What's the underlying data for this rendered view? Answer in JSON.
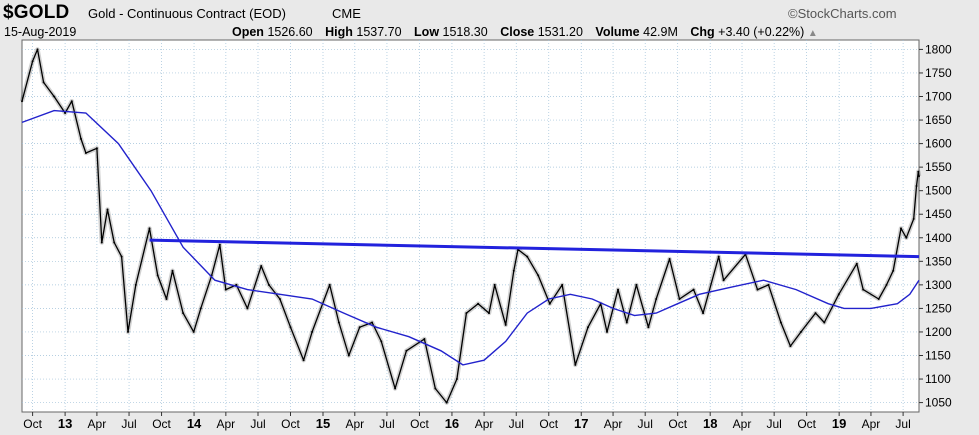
{
  "header": {
    "symbol": "$GOLD",
    "description": "Gold - Continuous Contract (EOD)",
    "exchange": "CME",
    "brand": "©StockCharts.com",
    "date": "15-Aug-2019",
    "open_label": "Open",
    "open_value": "1526.60",
    "high_label": "High",
    "high_value": "1537.70",
    "low_label": "Low",
    "low_value": "1518.30",
    "close_label": "Close",
    "close_value": "1531.20",
    "volume_label": "Volume",
    "volume_value": "42.9M",
    "chg_label": "Chg",
    "chg_value": "+3.40 (+0.22%)",
    "chg_arrow": "▲"
  },
  "colors": {
    "price": "#000000",
    "moving_average": "#2222cc",
    "trendline": "#2222dd",
    "grid": "#9fc0d8",
    "plot_background": "#ffffff",
    "frame": "#e9e9e9"
  },
  "chart_data": {
    "type": "line",
    "title": "Gold - Continuous Contract (EOD)",
    "y_axis_side": "right",
    "ylim": [
      1030,
      1820
    ],
    "yticks": [
      1050,
      1100,
      1150,
      1200,
      1250,
      1300,
      1350,
      1400,
      1450,
      1500,
      1550,
      1600,
      1650,
      1700,
      1750,
      1800
    ],
    "xlim": [
      "2012-09-01",
      "2019-08-15"
    ],
    "xticks": [
      {
        "label": "Oct",
        "date": "2012-10-01",
        "bold": false
      },
      {
        "label": "13",
        "date": "2013-01-01",
        "bold": true
      },
      {
        "label": "Apr",
        "date": "2013-04-01",
        "bold": false
      },
      {
        "label": "Jul",
        "date": "2013-07-01",
        "bold": false
      },
      {
        "label": "Oct",
        "date": "2013-10-01",
        "bold": false
      },
      {
        "label": "14",
        "date": "2014-01-01",
        "bold": true
      },
      {
        "label": "Apr",
        "date": "2014-04-01",
        "bold": false
      },
      {
        "label": "Jul",
        "date": "2014-07-01",
        "bold": false
      },
      {
        "label": "Oct",
        "date": "2014-10-01",
        "bold": false
      },
      {
        "label": "15",
        "date": "2015-01-01",
        "bold": true
      },
      {
        "label": "Apr",
        "date": "2015-04-01",
        "bold": false
      },
      {
        "label": "Jul",
        "date": "2015-07-01",
        "bold": false
      },
      {
        "label": "Oct",
        "date": "2015-10-01",
        "bold": false
      },
      {
        "label": "16",
        "date": "2016-01-01",
        "bold": true
      },
      {
        "label": "Apr",
        "date": "2016-04-01",
        "bold": false
      },
      {
        "label": "Jul",
        "date": "2016-07-01",
        "bold": false
      },
      {
        "label": "Oct",
        "date": "2016-10-01",
        "bold": false
      },
      {
        "label": "17",
        "date": "2017-01-01",
        "bold": true
      },
      {
        "label": "Apr",
        "date": "2017-04-01",
        "bold": false
      },
      {
        "label": "Jul",
        "date": "2017-07-01",
        "bold": false
      },
      {
        "label": "Oct",
        "date": "2017-10-01",
        "bold": false
      },
      {
        "label": "18",
        "date": "2018-01-01",
        "bold": true
      },
      {
        "label": "Apr",
        "date": "2018-04-01",
        "bold": false
      },
      {
        "label": "Jul",
        "date": "2018-07-01",
        "bold": false
      },
      {
        "label": "Oct",
        "date": "2018-10-01",
        "bold": false
      },
      {
        "label": "19",
        "date": "2019-01-01",
        "bold": true
      },
      {
        "label": "Apr",
        "date": "2019-04-01",
        "bold": false
      },
      {
        "label": "Jul",
        "date": "2019-07-01",
        "bold": false
      }
    ],
    "grid": true,
    "series": [
      {
        "style": "price",
        "points": [
          [
            "2012-09-01",
            1690
          ],
          [
            "2012-10-01",
            1775
          ],
          [
            "2012-10-15",
            1800
          ],
          [
            "2012-11-01",
            1730
          ],
          [
            "2012-12-01",
            1700
          ],
          [
            "2013-01-01",
            1665
          ],
          [
            "2013-01-20",
            1690
          ],
          [
            "2013-02-15",
            1610
          ],
          [
            "2013-03-01",
            1580
          ],
          [
            "2013-04-01",
            1590
          ],
          [
            "2013-04-15",
            1390
          ],
          [
            "2013-05-01",
            1460
          ],
          [
            "2013-05-20",
            1390
          ],
          [
            "2013-06-10",
            1360
          ],
          [
            "2013-06-28",
            1200
          ],
          [
            "2013-07-20",
            1300
          ],
          [
            "2013-08-28",
            1420
          ],
          [
            "2013-09-20",
            1320
          ],
          [
            "2013-10-15",
            1270
          ],
          [
            "2013-11-01",
            1330
          ],
          [
            "2013-12-01",
            1240
          ],
          [
            "2013-12-31",
            1200
          ],
          [
            "2014-01-20",
            1250
          ],
          [
            "2014-02-20",
            1320
          ],
          [
            "2014-03-15",
            1385
          ],
          [
            "2014-04-01",
            1290
          ],
          [
            "2014-05-01",
            1300
          ],
          [
            "2014-06-01",
            1250
          ],
          [
            "2014-07-10",
            1340
          ],
          [
            "2014-08-01",
            1300
          ],
          [
            "2014-09-01",
            1270
          ],
          [
            "2014-10-01",
            1210
          ],
          [
            "2014-11-07",
            1140
          ],
          [
            "2014-12-01",
            1200
          ],
          [
            "2015-01-20",
            1300
          ],
          [
            "2015-02-15",
            1220
          ],
          [
            "2015-03-15",
            1150
          ],
          [
            "2015-04-15",
            1210
          ],
          [
            "2015-05-20",
            1220
          ],
          [
            "2015-06-15",
            1180
          ],
          [
            "2015-07-24",
            1080
          ],
          [
            "2015-08-25",
            1160
          ],
          [
            "2015-10-15",
            1185
          ],
          [
            "2015-11-15",
            1080
          ],
          [
            "2015-12-17",
            1050
          ],
          [
            "2016-01-15",
            1100
          ],
          [
            "2016-02-11",
            1240
          ],
          [
            "2016-03-15",
            1260
          ],
          [
            "2016-04-15",
            1240
          ],
          [
            "2016-05-01",
            1300
          ],
          [
            "2016-06-01",
            1215
          ],
          [
            "2016-06-24",
            1330
          ],
          [
            "2016-07-06",
            1375
          ],
          [
            "2016-08-01",
            1360
          ],
          [
            "2016-09-01",
            1320
          ],
          [
            "2016-10-04",
            1260
          ],
          [
            "2016-11-08",
            1300
          ],
          [
            "2016-12-15",
            1130
          ],
          [
            "2017-01-20",
            1210
          ],
          [
            "2017-02-25",
            1260
          ],
          [
            "2017-03-15",
            1200
          ],
          [
            "2017-04-15",
            1290
          ],
          [
            "2017-05-10",
            1220
          ],
          [
            "2017-06-06",
            1300
          ],
          [
            "2017-07-10",
            1210
          ],
          [
            "2017-08-01",
            1270
          ],
          [
            "2017-09-08",
            1355
          ],
          [
            "2017-10-06",
            1270
          ],
          [
            "2017-11-15",
            1290
          ],
          [
            "2017-12-12",
            1240
          ],
          [
            "2018-01-25",
            1360
          ],
          [
            "2018-02-08",
            1310
          ],
          [
            "2018-04-11",
            1365
          ],
          [
            "2018-05-15",
            1290
          ],
          [
            "2018-06-15",
            1300
          ],
          [
            "2018-07-20",
            1220
          ],
          [
            "2018-08-16",
            1170
          ],
          [
            "2018-09-15",
            1200
          ],
          [
            "2018-10-26",
            1240
          ],
          [
            "2018-11-20",
            1220
          ],
          [
            "2018-12-31",
            1280
          ],
          [
            "2019-02-20",
            1345
          ],
          [
            "2019-03-10",
            1290
          ],
          [
            "2019-04-23",
            1270
          ],
          [
            "2019-05-15",
            1300
          ],
          [
            "2019-06-03",
            1330
          ],
          [
            "2019-06-25",
            1420
          ],
          [
            "2019-07-10",
            1400
          ],
          [
            "2019-07-31",
            1440
          ],
          [
            "2019-08-08",
            1510
          ],
          [
            "2019-08-13",
            1540
          ],
          [
            "2019-08-15",
            1531
          ]
        ]
      },
      {
        "style": "moving_average",
        "points": [
          [
            "2012-09-01",
            1645
          ],
          [
            "2012-12-01",
            1670
          ],
          [
            "2013-03-01",
            1665
          ],
          [
            "2013-06-01",
            1600
          ],
          [
            "2013-09-01",
            1500
          ],
          [
            "2013-12-01",
            1380
          ],
          [
            "2014-03-01",
            1310
          ],
          [
            "2014-06-01",
            1290
          ],
          [
            "2014-09-01",
            1280
          ],
          [
            "2014-12-01",
            1270
          ],
          [
            "2015-03-01",
            1240
          ],
          [
            "2015-06-01",
            1210
          ],
          [
            "2015-09-01",
            1190
          ],
          [
            "2015-12-01",
            1160
          ],
          [
            "2016-02-01",
            1130
          ],
          [
            "2016-04-01",
            1140
          ],
          [
            "2016-06-01",
            1180
          ],
          [
            "2016-08-01",
            1240
          ],
          [
            "2016-10-01",
            1270
          ],
          [
            "2016-12-01",
            1280
          ],
          [
            "2017-02-01",
            1270
          ],
          [
            "2017-04-01",
            1250
          ],
          [
            "2017-06-01",
            1235
          ],
          [
            "2017-08-01",
            1240
          ],
          [
            "2017-10-01",
            1260
          ],
          [
            "2017-12-01",
            1280
          ],
          [
            "2018-03-01",
            1295
          ],
          [
            "2018-06-01",
            1310
          ],
          [
            "2018-09-01",
            1290
          ],
          [
            "2018-12-01",
            1260
          ],
          [
            "2019-01-15",
            1250
          ],
          [
            "2019-04-01",
            1250
          ],
          [
            "2019-06-15",
            1260
          ],
          [
            "2019-07-20",
            1280
          ],
          [
            "2019-08-15",
            1310
          ]
        ]
      },
      {
        "style": "trendline",
        "points": [
          [
            "2013-08-28",
            1395
          ],
          [
            "2019-08-15",
            1360
          ]
        ]
      }
    ]
  }
}
